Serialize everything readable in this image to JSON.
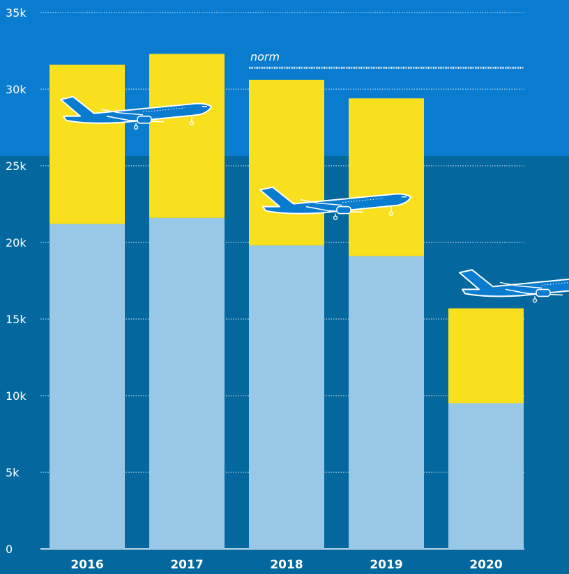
{
  "colors": {
    "background_top": "#0a7ccf",
    "background_bottom": "#04679e",
    "bar_lower": "#98c8e6",
    "bar_upper": "#f8e01e",
    "airplane": "#0a7ccf",
    "text": "#ffffff"
  },
  "chart_data": {
    "type": "bar",
    "stacked": true,
    "categories": [
      "2016",
      "2017",
      "2018",
      "2019",
      "2020"
    ],
    "series": [
      {
        "values": [
          21200,
          21600,
          19800,
          19100,
          9500
        ]
      },
      {
        "values": [
          10400,
          10700,
          10800,
          10300,
          6200
        ]
      }
    ],
    "totals": [
      31600,
      32300,
      30600,
      29400,
      15700
    ],
    "yticks": [
      "0",
      "5k",
      "10k",
      "15k",
      "20k",
      "25k",
      "30k",
      "35k"
    ],
    "ytick_values": [
      0,
      5000,
      10000,
      15000,
      20000,
      25000,
      30000,
      35000
    ],
    "ylim": [
      0,
      35000
    ],
    "grid": true,
    "reference_line": {
      "label": "norm",
      "value": 31400,
      "from_category": "2018",
      "to_category": "2020"
    },
    "airplane_icons": [
      {
        "name": "airplane-icon",
        "category": "2016",
        "value": 28600
      },
      {
        "name": "airplane-icon",
        "category": "2018",
        "value": 22700
      },
      {
        "name": "airplane-icon",
        "category": "2020",
        "value": 17300
      }
    ]
  }
}
